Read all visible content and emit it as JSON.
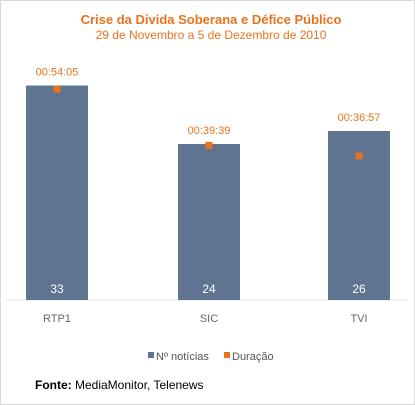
{
  "chart_data": {
    "type": "bar",
    "title": "Crise da Divida Soberana e Défice Público",
    "subtitle": "29 de Novembro a 5 de Dezembro de 2010",
    "categories": [
      "RTP1",
      "SIC",
      "TVI"
    ],
    "series": [
      {
        "name": "Nº notícias",
        "type": "bar",
        "values": [
          33,
          24,
          26
        ],
        "color": "#5e7491"
      },
      {
        "name": "Duração",
        "type": "marker",
        "values": [
          "00:54:05",
          "00:39:39",
          "00:36:57"
        ],
        "seconds": [
          3245,
          2379,
          2217
        ],
        "color": "#e8731f"
      }
    ],
    "ylim_count": [
      0,
      40
    ],
    "ylim_duration_seconds": [
      0,
      4000
    ],
    "legend_position": "bottom",
    "grid": false
  },
  "source": {
    "label": "Fonte:",
    "text": "MediaMonitor, Telenews"
  }
}
